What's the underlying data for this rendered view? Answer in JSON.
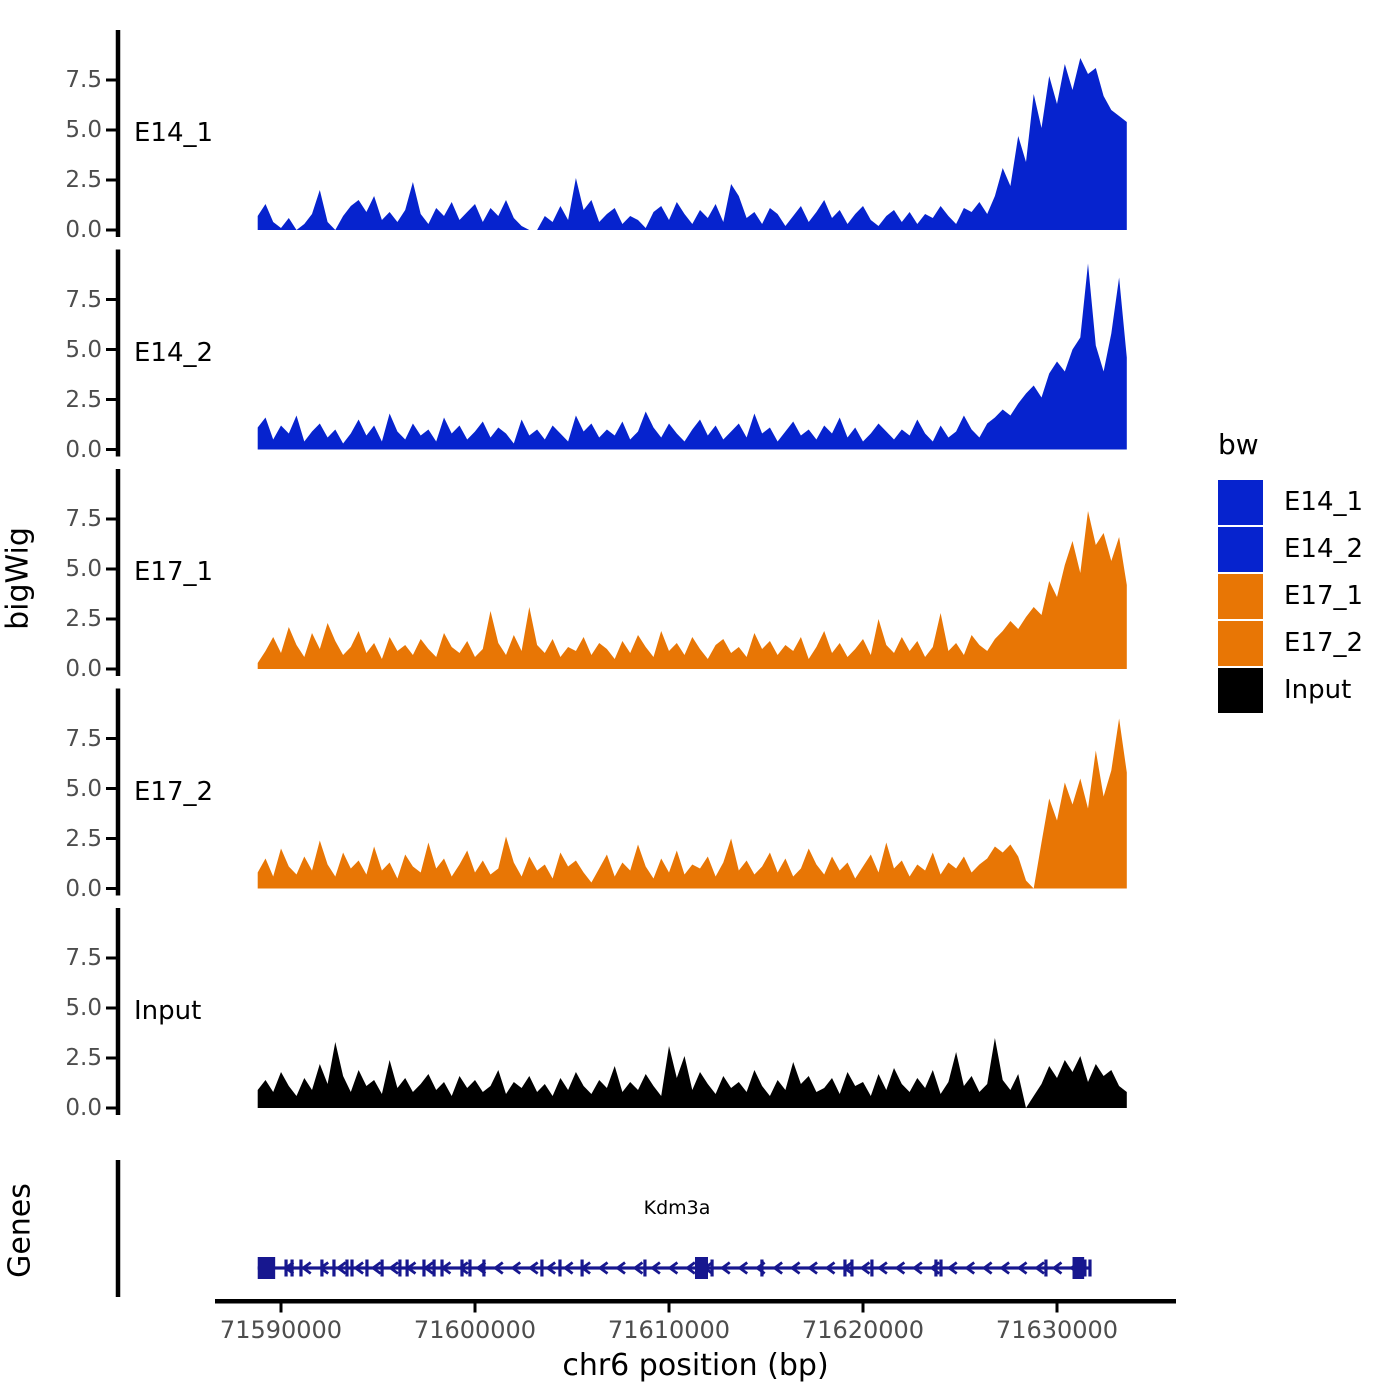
{
  "labels": {
    "y_axis": "bigWig",
    "genes": "Genes",
    "x_axis": "chr6 position (bp)"
  },
  "colors": {
    "blue": "#0623CE",
    "orange": "#E87605",
    "black": "#000000",
    "gene": "#17178F",
    "axis": "#000000",
    "tick_text": "#4D4D4D"
  },
  "chart_data": {
    "type": "area",
    "title": "",
    "xlabel": "chr6 position (bp)",
    "ylabel": "bigWig",
    "x_ticks_bp": [
      71590000,
      71600000,
      71610000,
      71620000,
      71630000
    ],
    "x_tick_labels": [
      "71590000",
      "71600000",
      "71610000",
      "71620000",
      "71630000"
    ],
    "x_range_bp": [
      71586600,
      71636100
    ],
    "y_ticks": [
      0.0,
      2.5,
      5.0,
      7.5
    ],
    "y_tick_labels": [
      "0.0",
      "2.5",
      "5.0",
      "7.5"
    ],
    "y_range": [
      0,
      9.9
    ],
    "grid": false,
    "legend_position": "right",
    "x_start_bp": 71588800,
    "x_step_bp": 400,
    "tracks": [
      {
        "name": "E14_1",
        "color": "#0623CE",
        "values": [
          0.7,
          1.3,
          0.4,
          0.1,
          0.6,
          0,
          0.3,
          0.8,
          2.0,
          0.4,
          0,
          0.7,
          1.2,
          1.5,
          0.9,
          1.7,
          0.5,
          0.9,
          0.4,
          1.0,
          2.4,
          0.8,
          0.3,
          1.1,
          0.7,
          1.4,
          0.5,
          0.9,
          1.3,
          0.4,
          1.1,
          0.7,
          1.5,
          0.6,
          0.2,
          0,
          0,
          0.7,
          0.4,
          1.2,
          0.5,
          2.6,
          1.0,
          1.5,
          0.4,
          0.8,
          1.1,
          0.3,
          0.7,
          0.5,
          0.1,
          0.9,
          1.2,
          0.5,
          1.4,
          0.8,
          0.3,
          1.0,
          0.6,
          1.3,
          0.4,
          2.3,
          1.7,
          0.6,
          0.9,
          0.3,
          1.1,
          0.8,
          0.2,
          0.7,
          1.2,
          0.4,
          0.9,
          1.5,
          0.6,
          1.0,
          0.3,
          0.8,
          1.2,
          0.5,
          0.2,
          0.7,
          1.0,
          0.4,
          0.9,
          0.3,
          0.8,
          0.6,
          1.2,
          0.7,
          0.3,
          1.1,
          0.9,
          1.4,
          0.8,
          1.7,
          3.1,
          2.2,
          4.7,
          3.4,
          6.8,
          5.1,
          7.7,
          6.3,
          8.3,
          7.0,
          8.6,
          7.8,
          8.1,
          6.7,
          6.0,
          5.7,
          5.4
        ]
      },
      {
        "name": "E14_2",
        "color": "#0623CE",
        "values": [
          1.1,
          1.6,
          0.5,
          1.2,
          0.8,
          1.7,
          0.4,
          0.9,
          1.3,
          0.6,
          1.0,
          0.3,
          0.8,
          1.5,
          0.7,
          1.2,
          0.4,
          1.8,
          0.9,
          0.5,
          1.3,
          0.7,
          1.0,
          0.4,
          1.6,
          0.8,
          1.2,
          0.5,
          0.9,
          1.4,
          0.6,
          1.1,
          0.8,
          0.3,
          1.5,
          0.7,
          1.0,
          0.5,
          1.2,
          0.8,
          0.4,
          1.7,
          0.9,
          1.3,
          0.6,
          1.0,
          0.7,
          1.4,
          0.5,
          0.9,
          1.9,
          1.1,
          0.6,
          1.3,
          0.8,
          0.4,
          1.0,
          1.5,
          0.7,
          1.2,
          0.5,
          0.9,
          1.3,
          0.6,
          1.8,
          0.8,
          1.1,
          0.4,
          0.9,
          1.4,
          0.7,
          1.0,
          0.5,
          1.2,
          0.8,
          1.6,
          0.6,
          1.1,
          0.4,
          0.8,
          1.3,
          0.9,
          0.5,
          1.0,
          0.7,
          1.5,
          0.8,
          0.4,
          1.2,
          0.6,
          0.9,
          1.7,
          1.0,
          0.6,
          1.3,
          1.6,
          2.0,
          1.7,
          2.3,
          2.8,
          3.2,
          2.6,
          3.8,
          4.4,
          3.9,
          5.0,
          5.6,
          9.3,
          5.2,
          3.9,
          5.8,
          8.6,
          4.6
        ]
      },
      {
        "name": "E17_1",
        "color": "#E87605",
        "values": [
          0.3,
          0.9,
          1.6,
          0.8,
          2.1,
          1.2,
          0.6,
          1.8,
          1.0,
          2.3,
          1.4,
          0.7,
          1.1,
          1.9,
          0.8,
          1.3,
          0.5,
          1.6,
          0.9,
          1.2,
          0.7,
          1.5,
          1.0,
          0.6,
          1.8,
          1.1,
          0.8,
          1.4,
          0.6,
          1.0,
          2.9,
          1.3,
          0.7,
          1.7,
          0.9,
          3.1,
          1.2,
          0.8,
          1.5,
          0.6,
          1.1,
          0.9,
          1.6,
          0.7,
          1.3,
          1.0,
          0.5,
          1.4,
          0.8,
          1.7,
          1.1,
          0.6,
          1.9,
          0.9,
          1.3,
          0.7,
          1.6,
          1.0,
          0.5,
          1.2,
          1.5,
          0.8,
          1.1,
          0.6,
          1.8,
          1.0,
          1.4,
          0.7,
          1.2,
          0.9,
          1.6,
          0.5,
          1.1,
          1.9,
          0.8,
          1.3,
          0.6,
          1.0,
          1.5,
          0.7,
          2.5,
          1.2,
          0.8,
          1.6,
          0.9,
          1.4,
          0.6,
          1.1,
          2.8,
          0.9,
          1.3,
          0.7,
          1.7,
          1.2,
          0.9,
          1.5,
          1.9,
          2.4,
          2.0,
          2.6,
          3.1,
          2.7,
          4.4,
          3.6,
          5.2,
          6.4,
          4.8,
          7.9,
          6.2,
          6.8,
          5.4,
          6.6,
          4.2
        ]
      },
      {
        "name": "E17_2",
        "color": "#E87605",
        "values": [
          0.8,
          1.5,
          0.6,
          2.0,
          1.1,
          0.7,
          1.6,
          0.9,
          2.4,
          1.2,
          0.6,
          1.8,
          1.0,
          1.4,
          0.7,
          2.1,
          0.9,
          1.3,
          0.5,
          1.7,
          1.1,
          0.8,
          2.3,
          1.0,
          1.5,
          0.6,
          1.2,
          1.9,
          0.8,
          1.4,
          0.7,
          1.0,
          2.6,
          1.3,
          0.6,
          1.6,
          0.9,
          1.2,
          0.5,
          1.8,
          1.1,
          1.4,
          0.8,
          0.3,
          1.0,
          1.7,
          0.6,
          1.3,
          0.9,
          2.2,
          1.1,
          0.5,
          1.5,
          0.8,
          1.9,
          0.7,
          1.2,
          1.0,
          1.6,
          0.6,
          1.3,
          2.5,
          0.9,
          1.4,
          0.7,
          1.1,
          1.8,
          0.8,
          1.5,
          0.6,
          1.0,
          2.0,
          1.2,
          0.7,
          1.6,
          0.9,
          1.3,
          0.5,
          1.1,
          1.7,
          0.8,
          2.3,
          1.0,
          1.4,
          0.6,
          1.2,
          0.9,
          1.8,
          0.7,
          1.3,
          1.0,
          1.6,
          0.8,
          1.2,
          1.5,
          2.1,
          1.8,
          2.2,
          1.6,
          0.4,
          0,
          2.3,
          4.5,
          3.4,
          5.3,
          4.2,
          5.5,
          4.0,
          6.9,
          4.6,
          5.9,
          8.5,
          5.8
        ]
      },
      {
        "name": "Input",
        "color": "#000000",
        "values": [
          0.9,
          1.4,
          0.8,
          1.8,
          1.1,
          0.6,
          1.5,
          0.9,
          2.2,
          1.2,
          3.3,
          1.6,
          0.8,
          1.9,
          1.1,
          1.4,
          0.7,
          2.4,
          1.0,
          1.5,
          0.8,
          1.2,
          1.7,
          0.9,
          1.3,
          0.6,
          1.6,
          1.0,
          1.4,
          0.8,
          1.1,
          1.9,
          0.7,
          1.3,
          1.0,
          1.6,
          0.8,
          1.2,
          0.6,
          1.5,
          0.9,
          1.8,
          1.1,
          0.7,
          1.4,
          1.0,
          2.1,
          0.8,
          1.3,
          0.9,
          1.7,
          1.1,
          0.6,
          3.1,
          1.5,
          2.6,
          0.9,
          1.8,
          1.2,
          0.7,
          1.6,
          1.0,
          1.3,
          0.8,
          1.9,
          1.1,
          0.6,
          1.4,
          0.9,
          2.3,
          1.2,
          1.6,
          0.8,
          1.0,
          1.5,
          0.7,
          1.8,
          1.1,
          1.3,
          0.6,
          1.7,
          0.9,
          2.0,
          1.2,
          0.8,
          1.5,
          1.0,
          1.9,
          0.7,
          1.3,
          2.8,
          1.1,
          1.6,
          0.8,
          1.2,
          3.5,
          1.4,
          0.9,
          1.7,
          0,
          0.6,
          1.2,
          2.1,
          1.5,
          2.4,
          1.8,
          2.6,
          1.3,
          2.2,
          1.6,
          1.9,
          1.1,
          0.8
        ]
      }
    ],
    "legend": {
      "title": "bw",
      "entries": [
        {
          "label": "E14_1",
          "color": "#0623CE"
        },
        {
          "label": "E14_2",
          "color": "#0623CE"
        },
        {
          "label": "E17_1",
          "color": "#E87605"
        },
        {
          "label": "E17_2",
          "color": "#E87605"
        },
        {
          "label": "Input",
          "color": "#000000"
        }
      ]
    },
    "gene_track": {
      "label": "Genes",
      "gene": {
        "name": "Kdm3a",
        "chromosome": "chr6",
        "start_bp": 71588800,
        "end_bp": 71631700,
        "strand": "-",
        "color": "#17178F",
        "wide_exons_bp": [
          [
            71588800,
            71589700
          ],
          [
            71611340,
            71612010
          ],
          [
            71630800,
            71631400
          ]
        ],
        "exons_bp": [
          71590260,
          71590570,
          71591030,
          71592110,
          71592730,
          71593400,
          71593660,
          71594430,
          71595210,
          71596130,
          71596500,
          71597370,
          71597890,
          71598300,
          71599330,
          71599740,
          71600460,
          71603450,
          71604380,
          71605520,
          71608760,
          71612220,
          71614790,
          71619070,
          71619430,
          71620460,
          71623760,
          71624020,
          71629430,
          71631440,
          71631700
        ]
      }
    }
  }
}
